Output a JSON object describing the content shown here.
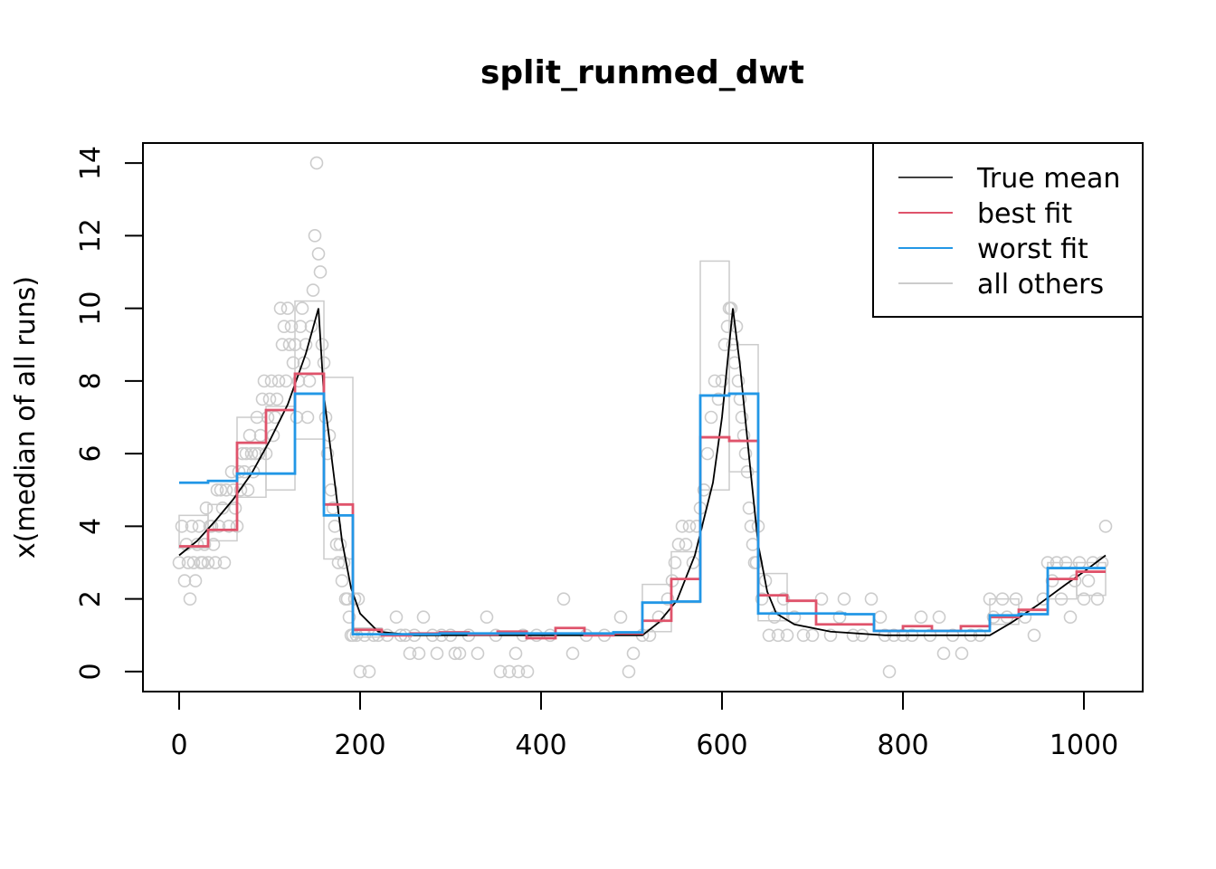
{
  "chart_data": {
    "type": "line",
    "title": "split_runmed_dwt",
    "xlabel": "",
    "ylabel": "x(median of all runs)",
    "xlim": [
      -40,
      1065
    ],
    "ylim": [
      -0.55,
      14.55
    ],
    "x_ticks": [
      0,
      200,
      400,
      600,
      800,
      1000
    ],
    "y_ticks": [
      0,
      2,
      4,
      6,
      8,
      10,
      12,
      14
    ],
    "grid": false,
    "legend_position": "top-right",
    "legend": [
      {
        "label": "True mean",
        "color": "#000000"
      },
      {
        "label": "best fit",
        "color": "#DF536B"
      },
      {
        "label": "worst fit",
        "color": "#2297E6"
      },
      {
        "label": "all others",
        "color": "#CCCCCC"
      }
    ],
    "series": [
      {
        "name": "True mean",
        "color": "#000000",
        "style": "line",
        "x": [
          0,
          20,
          40,
          60,
          80,
          100,
          120,
          140,
          154,
          160,
          170,
          180,
          190,
          200,
          220,
          260,
          320,
          400,
          460,
          512,
          530,
          550,
          570,
          590,
          600,
          612,
          620,
          630,
          640,
          650,
          660,
          680,
          720,
          780,
          840,
          896,
          920,
          950,
          980,
          1000,
          1024
        ],
        "y": [
          3.2,
          3.6,
          4.15,
          4.75,
          5.45,
          6.35,
          7.35,
          8.75,
          10.0,
          7.6,
          5.6,
          3.6,
          2.3,
          1.6,
          1.1,
          1.0,
          1.0,
          1.0,
          1.0,
          1.0,
          1.35,
          1.95,
          3.2,
          5.2,
          7.0,
          10.0,
          8.4,
          5.9,
          3.5,
          2.2,
          1.6,
          1.3,
          1.1,
          1.0,
          1.0,
          1.0,
          1.35,
          1.85,
          2.4,
          2.75,
          3.2
        ]
      },
      {
        "name": "best fit",
        "color": "#DF536B",
        "style": "step",
        "x": [
          0,
          32,
          64,
          96,
          128,
          160,
          192,
          224,
          256,
          288,
          320,
          352,
          384,
          416,
          448,
          480,
          512,
          544,
          576,
          608,
          640,
          672,
          704,
          736,
          768,
          800,
          832,
          864,
          896,
          928,
          960,
          992,
          1024
        ],
        "y": [
          3.45,
          3.9,
          6.3,
          7.2,
          8.2,
          4.6,
          1.15,
          1.0,
          1.05,
          1.08,
          1.02,
          1.1,
          0.92,
          1.2,
          1.0,
          1.05,
          1.4,
          2.55,
          6.45,
          6.35,
          2.1,
          1.95,
          1.3,
          1.3,
          1.12,
          1.25,
          1.12,
          1.25,
          1.5,
          1.7,
          2.55,
          2.75,
          2.75
        ]
      },
      {
        "name": "worst fit",
        "color": "#2297E6",
        "style": "step",
        "x": [
          0,
          32,
          64,
          96,
          128,
          160,
          192,
          224,
          256,
          288,
          320,
          352,
          384,
          416,
          448,
          480,
          512,
          544,
          576,
          608,
          640,
          672,
          704,
          736,
          768,
          800,
          832,
          864,
          896,
          928,
          960,
          992,
          1024
        ],
        "y": [
          5.2,
          5.25,
          5.45,
          5.45,
          7.65,
          4.3,
          1.03,
          1.03,
          1.03,
          1.05,
          1.05,
          1.05,
          1.05,
          1.05,
          1.05,
          1.08,
          1.9,
          1.93,
          7.6,
          7.65,
          1.6,
          1.6,
          1.6,
          1.58,
          1.12,
          1.12,
          1.12,
          1.12,
          1.55,
          1.58,
          2.85,
          2.85,
          2.85
        ]
      }
    ],
    "all_others_boxes": [
      {
        "x": [
          0,
          32
        ],
        "y": [
          3.4,
          4.3
        ]
      },
      {
        "x": [
          32,
          64
        ],
        "y": [
          3.6,
          4.6
        ]
      },
      {
        "x": [
          64,
          96
        ],
        "y": [
          4.8,
          7.0
        ]
      },
      {
        "x": [
          96,
          128
        ],
        "y": [
          5.0,
          7.3
        ]
      },
      {
        "x": [
          128,
          160
        ],
        "y": [
          6.4,
          10.2
        ]
      },
      {
        "x": [
          160,
          192
        ],
        "y": [
          3.1,
          8.1
        ]
      },
      {
        "x": [
          192,
          224
        ],
        "y": [
          0.95,
          1.2
        ]
      },
      {
        "x": [
          512,
          544
        ],
        "y": [
          1.1,
          2.4
        ]
      },
      {
        "x": [
          544,
          576
        ],
        "y": [
          1.9,
          3.3
        ]
      },
      {
        "x": [
          576,
          608
        ],
        "y": [
          5.0,
          11.3
        ]
      },
      {
        "x": [
          608,
          640
        ],
        "y": [
          5.5,
          9.0
        ]
      },
      {
        "x": [
          640,
          672
        ],
        "y": [
          1.4,
          2.7
        ]
      },
      {
        "x": [
          896,
          928
        ],
        "y": [
          1.3,
          2.0
        ]
      },
      {
        "x": [
          960,
          992
        ],
        "y": [
          2.0,
          3.0
        ]
      },
      {
        "x": [
          992,
          1024
        ],
        "y": [
          2.1,
          3.0
        ]
      }
    ],
    "all_others_points": [
      [
        0,
        3
      ],
      [
        3,
        4
      ],
      [
        6,
        2.5
      ],
      [
        8,
        3.5
      ],
      [
        10,
        3
      ],
      [
        12,
        2
      ],
      [
        14,
        4
      ],
      [
        16,
        3
      ],
      [
        18,
        2.5
      ],
      [
        20,
        3.5
      ],
      [
        22,
        4
      ],
      [
        24,
        3
      ],
      [
        26,
        3
      ],
      [
        28,
        3.5
      ],
      [
        30,
        4.5
      ],
      [
        32,
        3
      ],
      [
        34,
        4
      ],
      [
        36,
        4
      ],
      [
        38,
        3.5
      ],
      [
        40,
        3
      ],
      [
        42,
        5
      ],
      [
        44,
        4
      ],
      [
        46,
        5
      ],
      [
        48,
        4.5
      ],
      [
        50,
        3
      ],
      [
        52,
        5
      ],
      [
        55,
        4
      ],
      [
        58,
        5.5
      ],
      [
        60,
        5
      ],
      [
        62,
        4.5
      ],
      [
        64,
        4
      ],
      [
        66,
        5.5
      ],
      [
        68,
        5
      ],
      [
        70,
        6
      ],
      [
        72,
        5.5
      ],
      [
        74,
        6
      ],
      [
        76,
        5
      ],
      [
        78,
        6.5
      ],
      [
        80,
        6
      ],
      [
        82,
        5.5
      ],
      [
        84,
        6
      ],
      [
        86,
        7
      ],
      [
        88,
        6
      ],
      [
        90,
        6.5
      ],
      [
        92,
        7.5
      ],
      [
        94,
        8
      ],
      [
        96,
        6
      ],
      [
        98,
        7
      ],
      [
        100,
        7.5
      ],
      [
        102,
        8
      ],
      [
        104,
        6.5
      ],
      [
        106,
        7
      ],
      [
        108,
        7.5
      ],
      [
        110,
        8
      ],
      [
        112,
        10
      ],
      [
        114,
        9
      ],
      [
        116,
        9.5
      ],
      [
        118,
        8
      ],
      [
        120,
        10
      ],
      [
        122,
        9
      ],
      [
        124,
        9.5
      ],
      [
        126,
        8.5
      ],
      [
        128,
        9
      ],
      [
        130,
        7
      ],
      [
        132,
        8
      ],
      [
        134,
        9.5
      ],
      [
        136,
        10
      ],
      [
        138,
        8.5
      ],
      [
        140,
        9
      ],
      [
        142,
        7
      ],
      [
        144,
        8
      ],
      [
        146,
        9.5
      ],
      [
        148,
        10.5
      ],
      [
        150,
        12
      ],
      [
        152,
        14
      ],
      [
        154,
        11.5
      ],
      [
        156,
        11
      ],
      [
        158,
        9
      ],
      [
        160,
        8.5
      ],
      [
        162,
        7
      ],
      [
        164,
        6
      ],
      [
        166,
        6.5
      ],
      [
        168,
        5
      ],
      [
        170,
        4.5
      ],
      [
        172,
        4
      ],
      [
        174,
        3.5
      ],
      [
        176,
        3
      ],
      [
        178,
        3.5
      ],
      [
        180,
        2.5
      ],
      [
        182,
        3
      ],
      [
        184,
        2
      ],
      [
        186,
        2
      ],
      [
        188,
        1.5
      ],
      [
        190,
        1
      ],
      [
        192,
        1
      ],
      [
        194,
        2
      ],
      [
        196,
        1
      ],
      [
        198,
        2
      ],
      [
        200,
        0
      ],
      [
        205,
        1
      ],
      [
        210,
        0
      ],
      [
        215,
        1
      ],
      [
        220,
        1
      ],
      [
        230,
        1
      ],
      [
        240,
        1.5
      ],
      [
        245,
        1
      ],
      [
        250,
        1
      ],
      [
        255,
        0.5
      ],
      [
        260,
        1
      ],
      [
        265,
        0.5
      ],
      [
        270,
        1.5
      ],
      [
        280,
        1
      ],
      [
        285,
        0.5
      ],
      [
        290,
        1
      ],
      [
        300,
        1
      ],
      [
        305,
        0.5
      ],
      [
        310,
        0.5
      ],
      [
        320,
        1
      ],
      [
        330,
        0.5
      ],
      [
        340,
        1.5
      ],
      [
        350,
        1
      ],
      [
        355,
        0
      ],
      [
        365,
        0
      ],
      [
        372,
        0.5
      ],
      [
        375,
        0
      ],
      [
        380,
        1
      ],
      [
        385,
        0
      ],
      [
        395,
        1
      ],
      [
        410,
        1
      ],
      [
        425,
        2
      ],
      [
        435,
        0.5
      ],
      [
        450,
        1
      ],
      [
        470,
        1
      ],
      [
        488,
        1.5
      ],
      [
        497,
        0
      ],
      [
        502,
        0.5
      ],
      [
        512,
        1
      ],
      [
        520,
        1
      ],
      [
        530,
        1.5
      ],
      [
        540,
        2
      ],
      [
        545,
        2.5
      ],
      [
        548,
        3
      ],
      [
        552,
        3.5
      ],
      [
        556,
        4
      ],
      [
        560,
        3.5
      ],
      [
        564,
        4
      ],
      [
        568,
        3
      ],
      [
        572,
        4
      ],
      [
        576,
        4.5
      ],
      [
        580,
        5
      ],
      [
        584,
        6
      ],
      [
        588,
        7
      ],
      [
        592,
        8
      ],
      [
        596,
        7.5
      ],
      [
        600,
        8
      ],
      [
        603,
        9
      ],
      [
        606,
        9.5
      ],
      [
        608,
        10
      ],
      [
        610,
        10
      ],
      [
        612,
        9
      ],
      [
        614,
        8.5
      ],
      [
        616,
        9.5
      ],
      [
        618,
        8
      ],
      [
        620,
        7.5
      ],
      [
        622,
        7
      ],
      [
        624,
        6.5
      ],
      [
        626,
        6
      ],
      [
        628,
        5.5
      ],
      [
        630,
        4.5
      ],
      [
        632,
        4
      ],
      [
        634,
        3.5
      ],
      [
        636,
        3
      ],
      [
        638,
        3
      ],
      [
        640,
        4
      ],
      [
        644,
        2
      ],
      [
        648,
        2.5
      ],
      [
        652,
        1
      ],
      [
        658,
        1.5
      ],
      [
        662,
        1
      ],
      [
        668,
        2
      ],
      [
        672,
        1
      ],
      [
        680,
        1.5
      ],
      [
        690,
        1
      ],
      [
        700,
        1
      ],
      [
        710,
        2
      ],
      [
        720,
        1
      ],
      [
        730,
        1.5
      ],
      [
        735,
        2
      ],
      [
        745,
        1
      ],
      [
        755,
        1
      ],
      [
        765,
        2
      ],
      [
        775,
        1.5
      ],
      [
        780,
        1
      ],
      [
        785,
        0
      ],
      [
        790,
        1
      ],
      [
        800,
        1
      ],
      [
        810,
        1
      ],
      [
        820,
        1.5
      ],
      [
        830,
        1
      ],
      [
        840,
        1.5
      ],
      [
        845,
        0.5
      ],
      [
        855,
        1
      ],
      [
        865,
        0.5
      ],
      [
        875,
        1
      ],
      [
        885,
        1
      ],
      [
        896,
        2
      ],
      [
        900,
        1.5
      ],
      [
        910,
        2
      ],
      [
        915,
        1.5
      ],
      [
        925,
        2
      ],
      [
        935,
        1.5
      ],
      [
        945,
        1
      ],
      [
        955,
        2
      ],
      [
        960,
        3
      ],
      [
        965,
        2.5
      ],
      [
        970,
        3
      ],
      [
        975,
        2
      ],
      [
        980,
        3
      ],
      [
        985,
        1.5
      ],
      [
        990,
        2.5
      ],
      [
        995,
        3
      ],
      [
        1000,
        2
      ],
      [
        1005,
        2.5
      ],
      [
        1010,
        3
      ],
      [
        1015,
        2
      ],
      [
        1020,
        3
      ],
      [
        1024,
        4
      ]
    ]
  }
}
